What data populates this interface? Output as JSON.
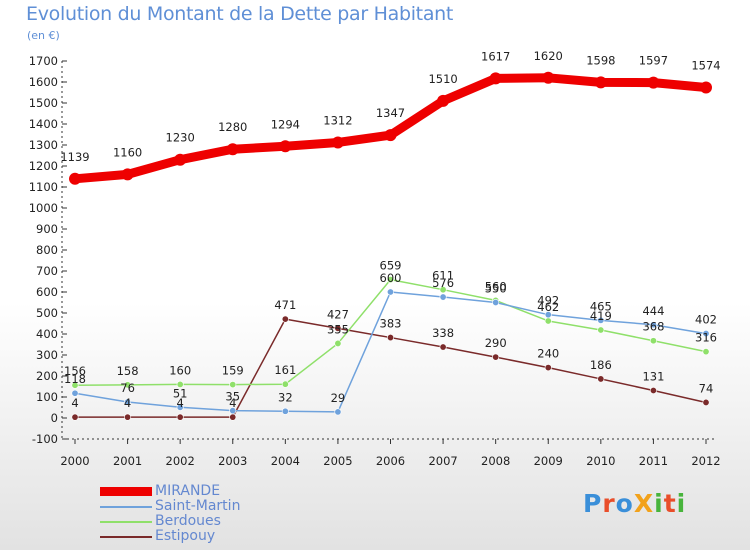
{
  "title": "Evolution du Montant de la Dette par Habitant",
  "unit": "(en €)",
  "logo": "ProXiti",
  "chart_data": {
    "type": "line",
    "title": "Evolution du Montant de la Dette par Habitant",
    "subtitle": "(en €)",
    "x": [
      2000,
      2001,
      2002,
      2003,
      2004,
      2005,
      2006,
      2007,
      2008,
      2009,
      2010,
      2011,
      2012
    ],
    "ylim": [
      -100,
      1700
    ],
    "yticks": [
      -100,
      0,
      100,
      200,
      300,
      400,
      500,
      600,
      700,
      800,
      900,
      1000,
      1100,
      1200,
      1300,
      1400,
      1500,
      1600,
      1700
    ],
    "grid": "none",
    "legend_position": "bottom-left",
    "series": [
      {
        "name": "MIRANDE",
        "color": "#ee0000",
        "values": [
          1139,
          1160,
          1230,
          1280,
          1294,
          1312,
          1347,
          1510,
          1617,
          1620,
          1598,
          1597,
          1574
        ]
      },
      {
        "name": "Saint-Martin",
        "color": "#6fa2dc",
        "values": [
          118,
          76,
          51,
          35,
          32,
          29,
          600,
          576,
          550,
          492,
          465,
          444,
          402
        ]
      },
      {
        "name": "Berdoues",
        "color": "#8fe06a",
        "values": [
          156,
          158,
          160,
          159,
          161,
          355,
          659,
          611,
          560,
          462,
          419,
          368,
          316
        ]
      },
      {
        "name": "Estipouy",
        "color": "#7a2a2a",
        "values": [
          4,
          4,
          4,
          4,
          471,
          427,
          383,
          338,
          290,
          240,
          186,
          131,
          74
        ]
      }
    ]
  }
}
